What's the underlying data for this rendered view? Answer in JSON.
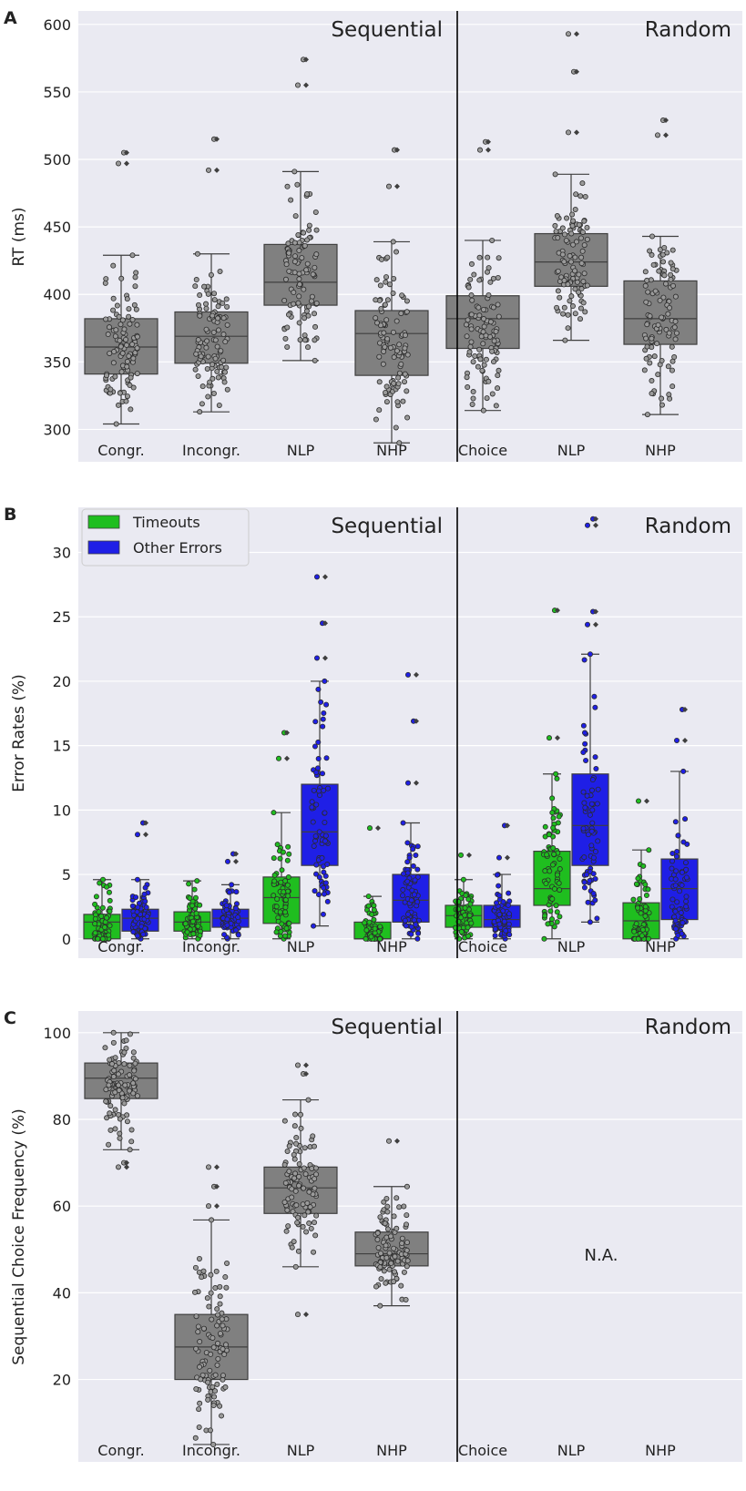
{
  "colors": {
    "background": "#eaeaf2",
    "grid": "#ffffff",
    "box_gray": "#808080",
    "timeouts": "#1fbe1f",
    "other_errors": "#1f1fe6",
    "edge": "#3f3f3f",
    "text": "#222222"
  },
  "chart_data": [
    {
      "type": "box",
      "panel_letter": "A",
      "ylabel": "RT (ms)",
      "ylim": [
        276,
        610
      ],
      "yticks": [
        300,
        350,
        400,
        450,
        500,
        550,
        600
      ],
      "categories": [
        "Congr.",
        "Incongr.",
        "NLP",
        "NHP",
        "Choice",
        "NLP",
        "NHP"
      ],
      "section_labels": [
        "Sequential",
        "Random"
      ],
      "divider_after_index": 3,
      "series": [
        {
          "name": "RT",
          "color_key": "box_gray",
          "n_points": 100,
          "boxes": [
            {
              "q1": 341,
              "median": 361,
              "q3": 382,
              "whisker_low": 304,
              "whisker_high": 429,
              "outliers": [
                497,
                505
              ]
            },
            {
              "q1": 349,
              "median": 369,
              "q3": 387,
              "whisker_low": 313,
              "whisker_high": 430,
              "outliers": [
                492,
                515
              ]
            },
            {
              "q1": 392,
              "median": 409,
              "q3": 437,
              "whisker_low": 351,
              "whisker_high": 491,
              "outliers": [
                555,
                574
              ]
            },
            {
              "q1": 340,
              "median": 371,
              "q3": 388,
              "whisker_low": 290,
              "whisker_high": 439,
              "outliers": [
                480,
                507
              ]
            },
            {
              "q1": 360,
              "median": 382,
              "q3": 399,
              "whisker_low": 314,
              "whisker_high": 440,
              "outliers": [
                507,
                513
              ]
            },
            {
              "q1": 406,
              "median": 424,
              "q3": 445,
              "whisker_low": 366,
              "whisker_high": 489,
              "outliers": [
                520,
                565,
                593
              ]
            },
            {
              "q1": 363,
              "median": 382,
              "q3": 410,
              "whisker_low": 311,
              "whisker_high": 443,
              "outliers": [
                518,
                529
              ]
            }
          ]
        }
      ]
    },
    {
      "type": "box",
      "panel_letter": "B",
      "ylabel": "Error Rates (%)",
      "ylim": [
        -1.5,
        33.5
      ],
      "yticks": [
        0,
        5,
        10,
        15,
        20,
        25,
        30
      ],
      "categories": [
        "Congr.",
        "Incongr.",
        "NLP",
        "NHP",
        "Choice",
        "NLP",
        "NHP"
      ],
      "section_labels": [
        "Sequential",
        "Random"
      ],
      "divider_after_index": 3,
      "legend": {
        "position": "top-left",
        "entries": [
          "Timeouts",
          "Other Errors"
        ]
      },
      "series": [
        {
          "name": "Timeouts",
          "color_key": "timeouts",
          "n_points": 70,
          "boxes": [
            {
              "q1": 0,
              "median": 1.3,
              "q3": 1.9,
              "whisker_low": 0,
              "whisker_high": 4.6,
              "outliers": []
            },
            {
              "q1": 0.6,
              "median": 1.3,
              "q3": 2.1,
              "whisker_low": 0,
              "whisker_high": 4.5,
              "outliers": []
            },
            {
              "q1": 1.2,
              "median": 3.2,
              "q3": 4.8,
              "whisker_low": 0,
              "whisker_high": 9.8,
              "outliers": [
                14.0,
                16.0
              ]
            },
            {
              "q1": 0,
              "median": 0,
              "q3": 1.3,
              "whisker_low": 0,
              "whisker_high": 3.3,
              "outliers": [
                8.6
              ]
            },
            {
              "q1": 0.9,
              "median": 1.8,
              "q3": 2.6,
              "whisker_low": 0,
              "whisker_high": 4.6,
              "outliers": [
                6.5
              ]
            },
            {
              "q1": 2.6,
              "median": 3.9,
              "q3": 6.8,
              "whisker_low": 0,
              "whisker_high": 12.8,
              "outliers": [
                15.6,
                25.5
              ]
            },
            {
              "q1": 0,
              "median": 1.4,
              "q3": 2.8,
              "whisker_low": 0,
              "whisker_high": 6.9,
              "outliers": [
                10.7
              ]
            }
          ]
        },
        {
          "name": "Other Errors",
          "color_key": "other_errors",
          "n_points": 70,
          "boxes": [
            {
              "q1": 0.6,
              "median": 1.6,
              "q3": 2.3,
              "whisker_low": 0,
              "whisker_high": 4.6,
              "outliers": [
                8.1,
                9.0
              ]
            },
            {
              "q1": 0.9,
              "median": 1.6,
              "q3": 2.3,
              "whisker_low": 0,
              "whisker_high": 4.2,
              "outliers": [
                6.0,
                6.6
              ]
            },
            {
              "q1": 5.7,
              "median": 8.3,
              "q3": 12.0,
              "whisker_low": 1.0,
              "whisker_high": 20.0,
              "outliers": [
                21.8,
                24.5,
                28.1
              ]
            },
            {
              "q1": 1.3,
              "median": 3.0,
              "q3": 5.0,
              "whisker_low": 0,
              "whisker_high": 9.0,
              "outliers": [
                12.1,
                16.9,
                20.5
              ]
            },
            {
              "q1": 0.9,
              "median": 1.5,
              "q3": 2.6,
              "whisker_low": 0,
              "whisker_high": 5.0,
              "outliers": [
                6.3,
                8.8
              ]
            },
            {
              "q1": 5.7,
              "median": 8.8,
              "q3": 12.8,
              "whisker_low": 1.3,
              "whisker_high": 22.1,
              "outliers": [
                24.4,
                25.4,
                32.1,
                32.6
              ]
            },
            {
              "q1": 1.5,
              "median": 3.9,
              "q3": 6.2,
              "whisker_low": 0,
              "whisker_high": 13.0,
              "outliers": [
                15.4,
                17.8
              ]
            }
          ]
        }
      ]
    },
    {
      "type": "box",
      "panel_letter": "C",
      "ylabel": "Sequential Choice Frequency (%)",
      "ylim": [
        1,
        105
      ],
      "yticks": [
        20,
        40,
        60,
        80,
        100
      ],
      "categories": [
        "Congr.",
        "Incongr.",
        "NLP",
        "NHP",
        "Choice",
        "NLP",
        "NHP"
      ],
      "section_labels": [
        "Sequential",
        "Random"
      ],
      "divider_after_index": 3,
      "annotation": "N.A.",
      "series": [
        {
          "name": "Sequential choice",
          "color_key": "box_gray",
          "n_points": 100,
          "boxes": [
            {
              "q1": 84.8,
              "median": 89.5,
              "q3": 93.0,
              "whisker_low": 73.0,
              "whisker_high": 100,
              "outliers": [
                69,
                70
              ]
            },
            {
              "q1": 20.0,
              "median": 27.5,
              "q3": 35.0,
              "whisker_low": 5.0,
              "whisker_high": 56.8,
              "outliers": [
                60,
                64.5,
                69
              ]
            },
            {
              "q1": 58.3,
              "median": 64.2,
              "q3": 69.0,
              "whisker_low": 46.0,
              "whisker_high": 84.5,
              "outliers": [
                35,
                90.5,
                92.5
              ]
            },
            {
              "q1": 46.2,
              "median": 49.0,
              "q3": 54.0,
              "whisker_low": 37.0,
              "whisker_high": 64.5,
              "outliers": [
                75
              ]
            },
            null,
            null,
            null
          ]
        }
      ]
    }
  ]
}
